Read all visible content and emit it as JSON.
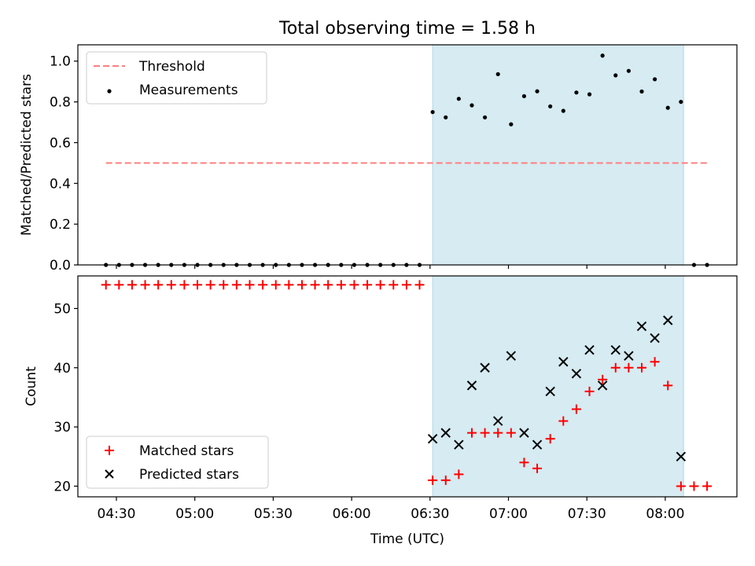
{
  "title": "Total observing time = 1.58 h",
  "colors": {
    "threshold": "#ff7f7f",
    "measurement": "#000000",
    "matched": "#ff0000",
    "predicted": "#000000",
    "span": "#add8e6"
  },
  "chart_data": [
    {
      "type": "scatter",
      "ylabel": "Matched/Predicted stars",
      "ylim": [
        0,
        1.08
      ],
      "yticks": [
        "0.0",
        "0.2",
        "0.4",
        "0.6",
        "0.8",
        "1.0"
      ],
      "legend": [
        "Threshold",
        "Measurements"
      ],
      "legend_position": "top-left",
      "threshold": {
        "y": 0.5,
        "x_start": "04:26",
        "x_end": "08:16"
      },
      "shaded_span": {
        "x_start": "06:31",
        "x_end": "08:07"
      },
      "series": [
        {
          "name": "Measurements",
          "x": [
            "04:26",
            "04:31",
            "04:36",
            "04:41",
            "04:46",
            "04:51",
            "04:56",
            "05:01",
            "05:06",
            "05:11",
            "05:16",
            "05:21",
            "05:26",
            "05:31",
            "05:36",
            "05:41",
            "05:46",
            "05:51",
            "05:56",
            "06:01",
            "06:06",
            "06:11",
            "06:16",
            "06:21",
            "06:26",
            "06:31",
            "06:36",
            "06:41",
            "06:46",
            "06:51",
            "06:56",
            "07:01",
            "07:06",
            "07:11",
            "07:16",
            "07:21",
            "07:26",
            "07:31",
            "07:36",
            "07:41",
            "07:46",
            "07:51",
            "07:56",
            "08:01",
            "08:06",
            "08:11",
            "08:16"
          ],
          "y": [
            0,
            0,
            0,
            0,
            0,
            0,
            0,
            0,
            0,
            0,
            0,
            0,
            0,
            0,
            0,
            0,
            0,
            0,
            0,
            0,
            0,
            0,
            0,
            0,
            0,
            0.75,
            0.724,
            0.815,
            0.783,
            0.724,
            0.936,
            0.69,
            0.828,
            0.852,
            0.778,
            0.756,
            0.846,
            0.837,
            1.027,
            0.93,
            0.952,
            0.851,
            0.911,
            0.771,
            0.8,
            0,
            0
          ]
        }
      ]
    },
    {
      "type": "scatter",
      "xlabel": "Time (UTC)",
      "ylabel": "Count",
      "ylim": [
        18.2,
        55.5
      ],
      "yticks": [
        "20",
        "30",
        "40",
        "50"
      ],
      "xticks": [
        "04:30",
        "05:00",
        "05:30",
        "06:00",
        "06:30",
        "07:00",
        "07:30",
        "08:00"
      ],
      "legend": [
        "Matched stars",
        "Predicted stars"
      ],
      "legend_position": "bottom-left",
      "shaded_span": {
        "x_start": "06:31",
        "x_end": "08:07"
      },
      "series": [
        {
          "name": "Matched stars",
          "x": [
            "04:26",
            "04:31",
            "04:36",
            "04:41",
            "04:46",
            "04:51",
            "04:56",
            "05:01",
            "05:06",
            "05:11",
            "05:16",
            "05:21",
            "05:26",
            "05:31",
            "05:36",
            "05:41",
            "05:46",
            "05:51",
            "05:56",
            "06:01",
            "06:06",
            "06:11",
            "06:16",
            "06:21",
            "06:26",
            "06:31",
            "06:36",
            "06:41",
            "06:46",
            "06:51",
            "06:56",
            "07:01",
            "07:06",
            "07:11",
            "07:16",
            "07:21",
            "07:26",
            "07:31",
            "07:36",
            "07:41",
            "07:46",
            "07:51",
            "07:56",
            "08:01",
            "08:06",
            "08:11",
            "08:16"
          ],
          "y": [
            54,
            54,
            54,
            54,
            54,
            54,
            54,
            54,
            54,
            54,
            54,
            54,
            54,
            54,
            54,
            54,
            54,
            54,
            54,
            54,
            54,
            54,
            54,
            54,
            54,
            21,
            21,
            22,
            29,
            29,
            29,
            29,
            24,
            23,
            28,
            31,
            33,
            36,
            38,
            40,
            40,
            40,
            41,
            37,
            20,
            20,
            20
          ]
        },
        {
          "name": "Predicted stars",
          "x": [
            "06:31",
            "06:36",
            "06:41",
            "06:46",
            "06:51",
            "06:56",
            "07:01",
            "07:06",
            "07:11",
            "07:16",
            "07:21",
            "07:26",
            "07:31",
            "07:36",
            "07:41",
            "07:46",
            "07:51",
            "07:56",
            "08:01",
            "08:06"
          ],
          "y": [
            28,
            29,
            27,
            37,
            40,
            31,
            42,
            29,
            27,
            36,
            41,
            39,
            43,
            37,
            43,
            42,
            47,
            45,
            48,
            25
          ]
        }
      ]
    }
  ]
}
